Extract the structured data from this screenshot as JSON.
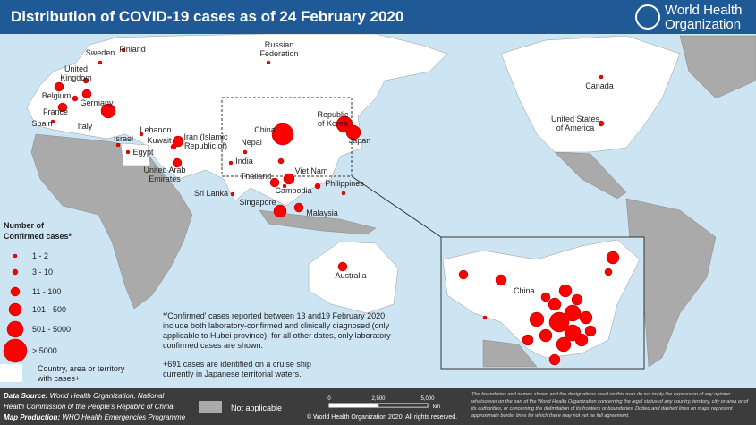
{
  "header": {
    "title": "Distribution of COVID-19 cases as of 24 February 2020",
    "logo": [
      "World Health",
      "Organization"
    ]
  },
  "labels": [
    [
      "Sweden"
    ],
    [
      "Finland"
    ],
    [
      "Russian",
      "Federation"
    ],
    [
      "United",
      "Kingdom"
    ],
    [
      "Belgium"
    ],
    [
      "Germany"
    ],
    [
      "France"
    ],
    [
      "Spain"
    ],
    [
      "Italy"
    ],
    [
      "Lebanon"
    ],
    [
      "Israel"
    ],
    [
      "Kuwait"
    ],
    [
      "Iran (Islamic",
      "Republic of)"
    ],
    [
      "Egypt"
    ],
    [
      "Nepal"
    ],
    [
      "India"
    ],
    [
      "United Arab",
      "Emirates"
    ],
    [
      "Thailand"
    ],
    [
      "Viet Nam"
    ],
    [
      "Cambodia"
    ],
    [
      "Philippines"
    ],
    [
      "Sri Lanka"
    ],
    [
      "Singapore"
    ],
    [
      "Malaysia"
    ],
    [
      "China"
    ],
    [
      "Republic",
      "of Korea"
    ],
    [
      "Japan"
    ],
    [
      "Canada"
    ],
    [
      "United States",
      "of America"
    ],
    [
      "Australia"
    ]
  ],
  "inset_label": "China",
  "legend": {
    "title": [
      "Number of",
      "Confirmed cases*"
    ],
    "items": [
      "1 - 2",
      "3 - 10",
      "11 - 100",
      "101 - 500",
      "501 - 5000",
      "> 5000"
    ],
    "territory": [
      "Country, area or territory",
      "with cases+"
    ]
  },
  "notes": {
    "confirmed": [
      "*'Confirmed' cases reported between 13 and19 February 2020",
      "include both laboratory-confirmed and clinically diagnosed (only",
      "applicable to Hubei province); for all other dates, only laboratory-",
      "confirmed cases are shown."
    ],
    "cruise": [
      "+691 cases are identified on a cruise ship",
      "currently in Japanese territorial waters."
    ]
  },
  "footer": {
    "source_label": "Data Source:",
    "source": [
      "World Health Organization, National",
      "Health Commission of the People's Republic of China"
    ],
    "production_label": "Map Production:",
    "production": "WHO Health Emergencies Programme",
    "not_applicable": "Not applicable",
    "scale": [
      "0",
      "2,500",
      "5,000"
    ],
    "scale_unit": "km",
    "copyright": "© World Health Organization 2020, All rights reserved.",
    "disclaimer": "The boundaries and names shown and the designations used on this map do not imply the expression of any opinion whatsoever on the part of the World Health Organization concerning the legal status of any country, territory, city or area or of its authorities, or concerning the delimitation of its frontiers or boundaries. Dotted and dashed lines on maps represent approximate border lines for which there may not yet be full agreement."
  }
}
